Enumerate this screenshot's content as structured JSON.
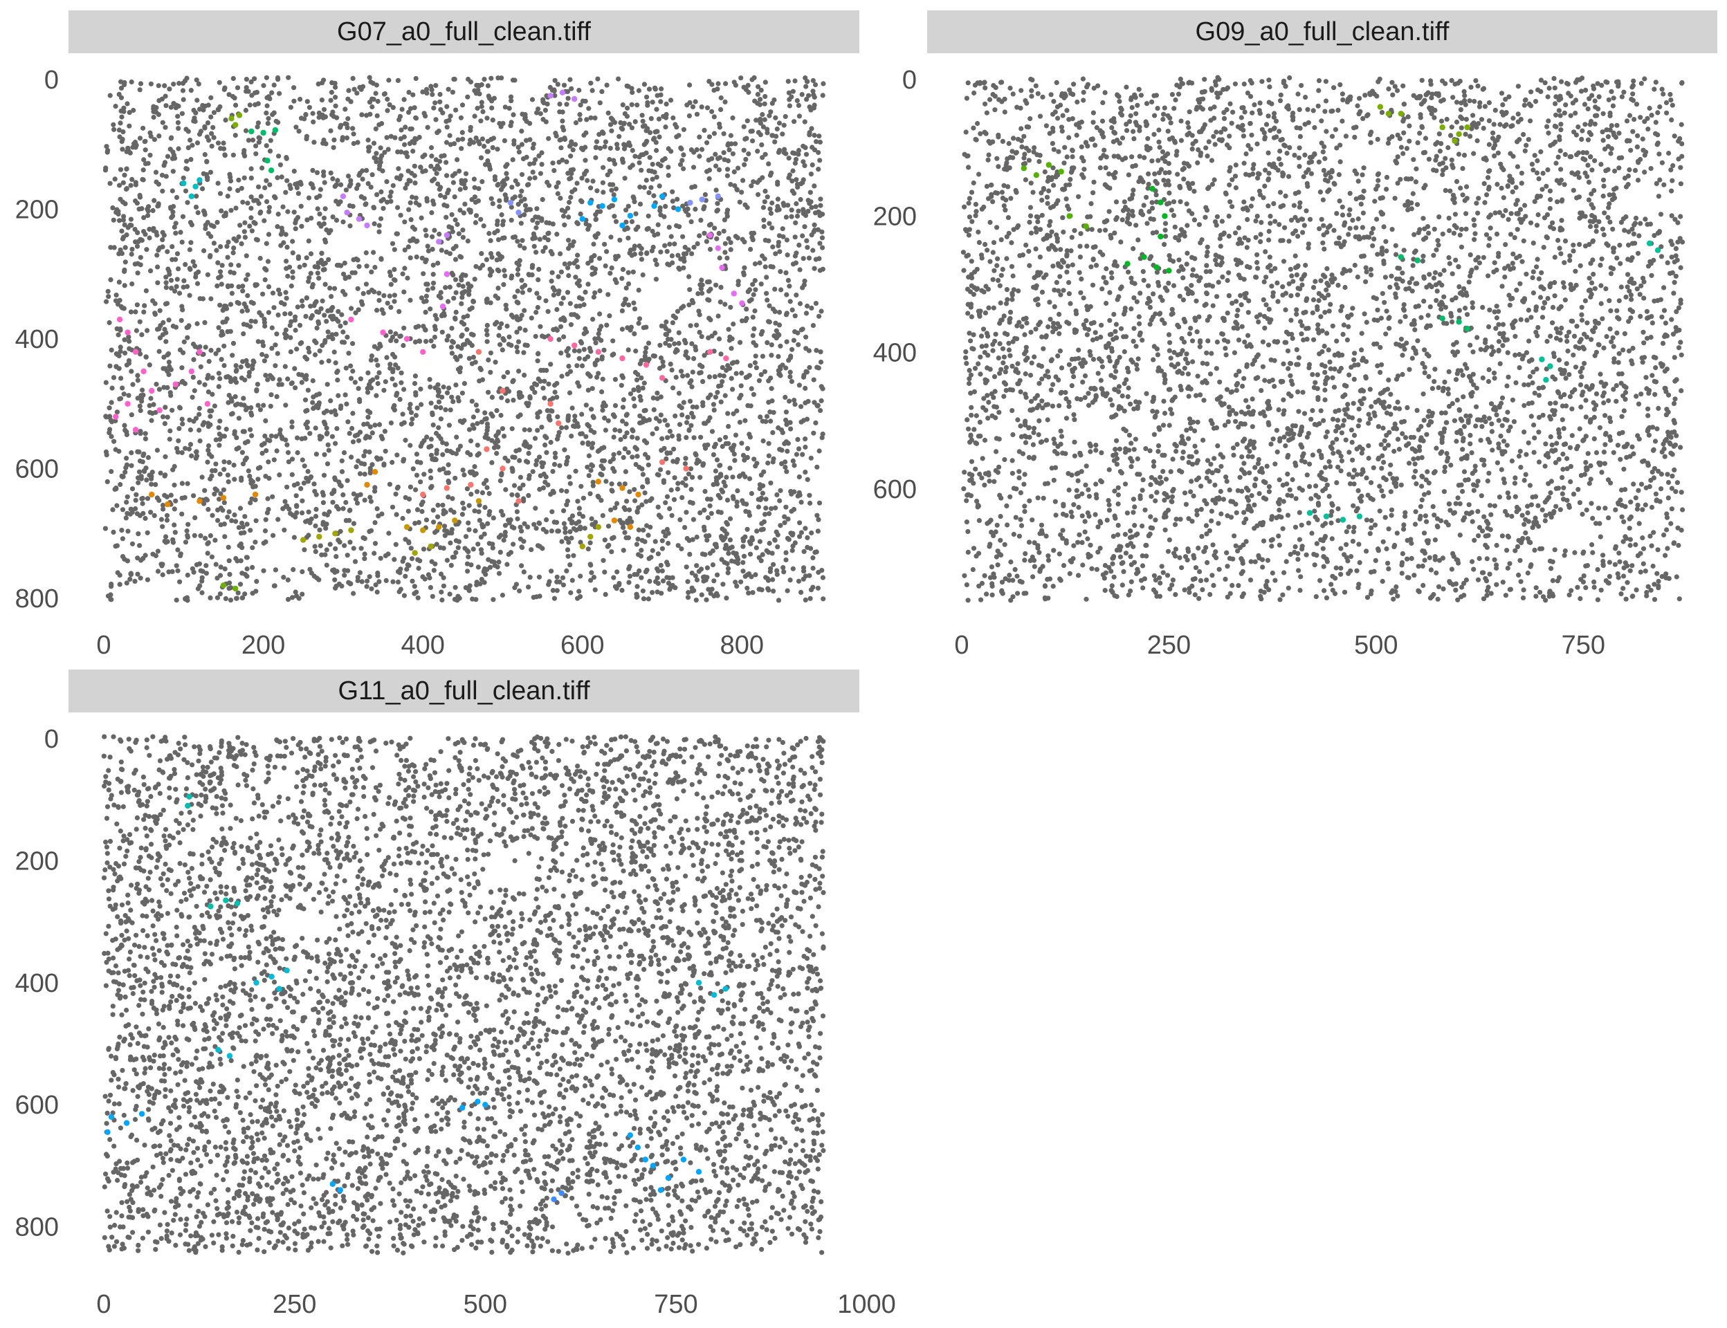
{
  "chart_data": [
    {
      "type": "scatter",
      "title": "G07_a0_full_clean.tiff",
      "xlim": [
        0,
        850
      ],
      "ylim": [
        0,
        800
      ],
      "y_reversed": true,
      "xticks": [
        0,
        200,
        400,
        600,
        800
      ],
      "yticks": [
        0,
        200,
        400,
        600,
        800
      ],
      "grid": false,
      "background_point_color": "#666666",
      "clusters": [
        {
          "color": "#7CAE00",
          "points": [
            [
              160,
              60
            ],
            [
              165,
              70
            ],
            [
              170,
              55
            ]
          ]
        },
        {
          "color": "#00BE67",
          "points": [
            [
              185,
              80
            ],
            [
              200,
              82
            ],
            [
              215,
              78
            ],
            [
              205,
              125
            ],
            [
              210,
              140
            ]
          ]
        },
        {
          "color": "#00BFC4",
          "points": [
            [
              100,
              160
            ],
            [
              115,
              165
            ],
            [
              110,
              180
            ],
            [
              120,
              155
            ]
          ]
        },
        {
          "color": "#00A9FF",
          "points": [
            [
              610,
              190
            ],
            [
              625,
              195
            ],
            [
              640,
              185
            ],
            [
              700,
              180
            ],
            [
              690,
              195
            ],
            [
              720,
              200
            ],
            [
              600,
              215
            ],
            [
              660,
              210
            ],
            [
              650,
              225
            ]
          ]
        },
        {
          "color": "#8494FF",
          "points": [
            [
              510,
              190
            ],
            [
              520,
              205
            ],
            [
              735,
              190
            ],
            [
              750,
              185
            ],
            [
              770,
              180
            ]
          ]
        },
        {
          "color": "#C77CFF",
          "points": [
            [
              300,
              180
            ],
            [
              305,
              205
            ],
            [
              320,
              215
            ],
            [
              330,
              225
            ],
            [
              420,
              250
            ],
            [
              430,
              240
            ],
            [
              560,
              25
            ],
            [
              575,
              20
            ],
            [
              590,
              30
            ]
          ]
        },
        {
          "color": "#E76BF3",
          "points": [
            [
              760,
              240
            ],
            [
              770,
              260
            ],
            [
              775,
              290
            ],
            [
              790,
              330
            ],
            [
              800,
              345
            ],
            [
              430,
              300
            ],
            [
              425,
              350
            ]
          ]
        },
        {
          "color": "#FF61CC",
          "points": [
            [
              20,
              370
            ],
            [
              30,
              390
            ],
            [
              40,
              420
            ],
            [
              50,
              450
            ],
            [
              60,
              480
            ],
            [
              30,
              500
            ],
            [
              70,
              510
            ],
            [
              90,
              470
            ],
            [
              110,
              450
            ],
            [
              130,
              500
            ],
            [
              120,
              420
            ],
            [
              15,
              520
            ],
            [
              40,
              540
            ],
            [
              310,
              370
            ],
            [
              350,
              390
            ],
            [
              380,
              400
            ],
            [
              400,
              420
            ]
          ]
        },
        {
          "color": "#FF67A4",
          "points": [
            [
              560,
              400
            ],
            [
              590,
              410
            ],
            [
              620,
              420
            ],
            [
              650,
              430
            ],
            [
              680,
              440
            ],
            [
              700,
              460
            ],
            [
              760,
              420
            ],
            [
              780,
              430
            ]
          ]
        },
        {
          "color": "#F8766D",
          "points": [
            [
              470,
              420
            ],
            [
              500,
              480
            ],
            [
              560,
              500
            ],
            [
              570,
              530
            ],
            [
              480,
              570
            ],
            [
              500,
              600
            ],
            [
              460,
              625
            ],
            [
              430,
              630
            ],
            [
              400,
              640
            ],
            [
              520,
              650
            ],
            [
              700,
              590
            ],
            [
              730,
              600
            ]
          ]
        },
        {
          "color": "#E58700",
          "points": [
            [
              60,
              640
            ],
            [
              80,
              655
            ],
            [
              120,
              650
            ],
            [
              150,
              645
            ],
            [
              190,
              640
            ],
            [
              330,
              625
            ],
            [
              340,
              605
            ],
            [
              620,
              620
            ],
            [
              650,
              630
            ],
            [
              670,
              640
            ],
            [
              640,
              680
            ],
            [
              660,
              690
            ]
          ]
        },
        {
          "color": "#C99800",
          "points": [
            [
              380,
              690
            ],
            [
              400,
              695
            ],
            [
              420,
              690
            ],
            [
              440,
              680
            ],
            [
              470,
              650
            ]
          ]
        },
        {
          "color": "#A3A500",
          "points": [
            [
              250,
              710
            ],
            [
              270,
              705
            ],
            [
              290,
              700
            ],
            [
              310,
              695
            ],
            [
              390,
              730
            ],
            [
              410,
              720
            ],
            [
              600,
              720
            ],
            [
              610,
              705
            ],
            [
              620,
              690
            ]
          ]
        },
        {
          "color": "#6BB100",
          "points": [
            [
              150,
              780
            ],
            [
              165,
              785
            ]
          ]
        }
      ]
    },
    {
      "type": "scatter",
      "title": "G09_a0_full_clean.tiff",
      "xlim": [
        0,
        870
      ],
      "ylim": [
        0,
        760
      ],
      "y_reversed": true,
      "xticks": [
        0,
        250,
        500,
        750
      ],
      "yticks": [
        0,
        200,
        400,
        600
      ],
      "grid": false,
      "background_point_color": "#666666",
      "clusters": [
        {
          "color": "#7CAE00",
          "points": [
            [
              505,
              40
            ],
            [
              515,
              50
            ],
            [
              530,
              50
            ],
            [
              580,
              70
            ],
            [
              600,
              80
            ],
            [
              610,
              70
            ],
            [
              595,
              90
            ]
          ]
        },
        {
          "color": "#53B400",
          "points": [
            [
              75,
              130
            ],
            [
              90,
              140
            ],
            [
              105,
              125
            ],
            [
              120,
              135
            ],
            [
              130,
              200
            ],
            [
              150,
              215
            ]
          ]
        },
        {
          "color": "#00B81F",
          "points": [
            [
              230,
              160
            ],
            [
              240,
              180
            ],
            [
              245,
              200
            ],
            [
              240,
              230
            ],
            [
              220,
              260
            ],
            [
              200,
              270
            ],
            [
              235,
              275
            ],
            [
              250,
              280
            ]
          ]
        },
        {
          "color": "#00BE67",
          "points": [
            [
              530,
              260
            ],
            [
              550,
              265
            ],
            [
              580,
              350
            ],
            [
              600,
              355
            ],
            [
              610,
              365
            ]
          ]
        },
        {
          "color": "#00C19A",
          "points": [
            [
              700,
              410
            ],
            [
              710,
              420
            ],
            [
              705,
              440
            ],
            [
              830,
              240
            ],
            [
              840,
              250
            ],
            [
              420,
              635
            ],
            [
              440,
              640
            ],
            [
              460,
              645
            ],
            [
              480,
              640
            ]
          ]
        }
      ]
    },
    {
      "type": "scatter",
      "title": "G11_a0_full_clean.tiff",
      "xlim": [
        0,
        975
      ],
      "ylim": [
        0,
        830
      ],
      "y_reversed": true,
      "xticks": [
        0,
        250,
        500,
        750,
        1000
      ],
      "yticks": [
        0,
        200,
        400,
        600,
        800
      ],
      "grid": false,
      "background_point_color": "#666666",
      "clusters": [
        {
          "color": "#00BFB0",
          "points": [
            [
              110,
              110
            ],
            [
              112,
              95
            ],
            [
              140,
              275
            ],
            [
              160,
              265
            ],
            [
              175,
              270
            ]
          ]
        },
        {
          "color": "#00BCD8",
          "points": [
            [
              200,
              400
            ],
            [
              220,
              390
            ],
            [
              230,
              410
            ],
            [
              240,
              380
            ],
            [
              150,
              510
            ],
            [
              165,
              520
            ],
            [
              780,
              400
            ],
            [
              800,
              420
            ],
            [
              815,
              410
            ]
          ]
        },
        {
          "color": "#00A6FF",
          "points": [
            [
              10,
              620
            ],
            [
              30,
              630
            ],
            [
              50,
              615
            ],
            [
              5,
              645
            ],
            [
              470,
              605
            ],
            [
              490,
              595
            ],
            [
              500,
              600
            ],
            [
              300,
              730
            ],
            [
              310,
              740
            ],
            [
              690,
              650
            ],
            [
              700,
              670
            ],
            [
              710,
              690
            ],
            [
              720,
              700
            ],
            [
              740,
              720
            ],
            [
              760,
              690
            ],
            [
              780,
              710
            ],
            [
              730,
              740
            ]
          ]
        },
        {
          "color": "#3D8BFF",
          "points": [
            [
              590,
              755
            ],
            [
              600,
              745
            ]
          ]
        }
      ]
    }
  ]
}
